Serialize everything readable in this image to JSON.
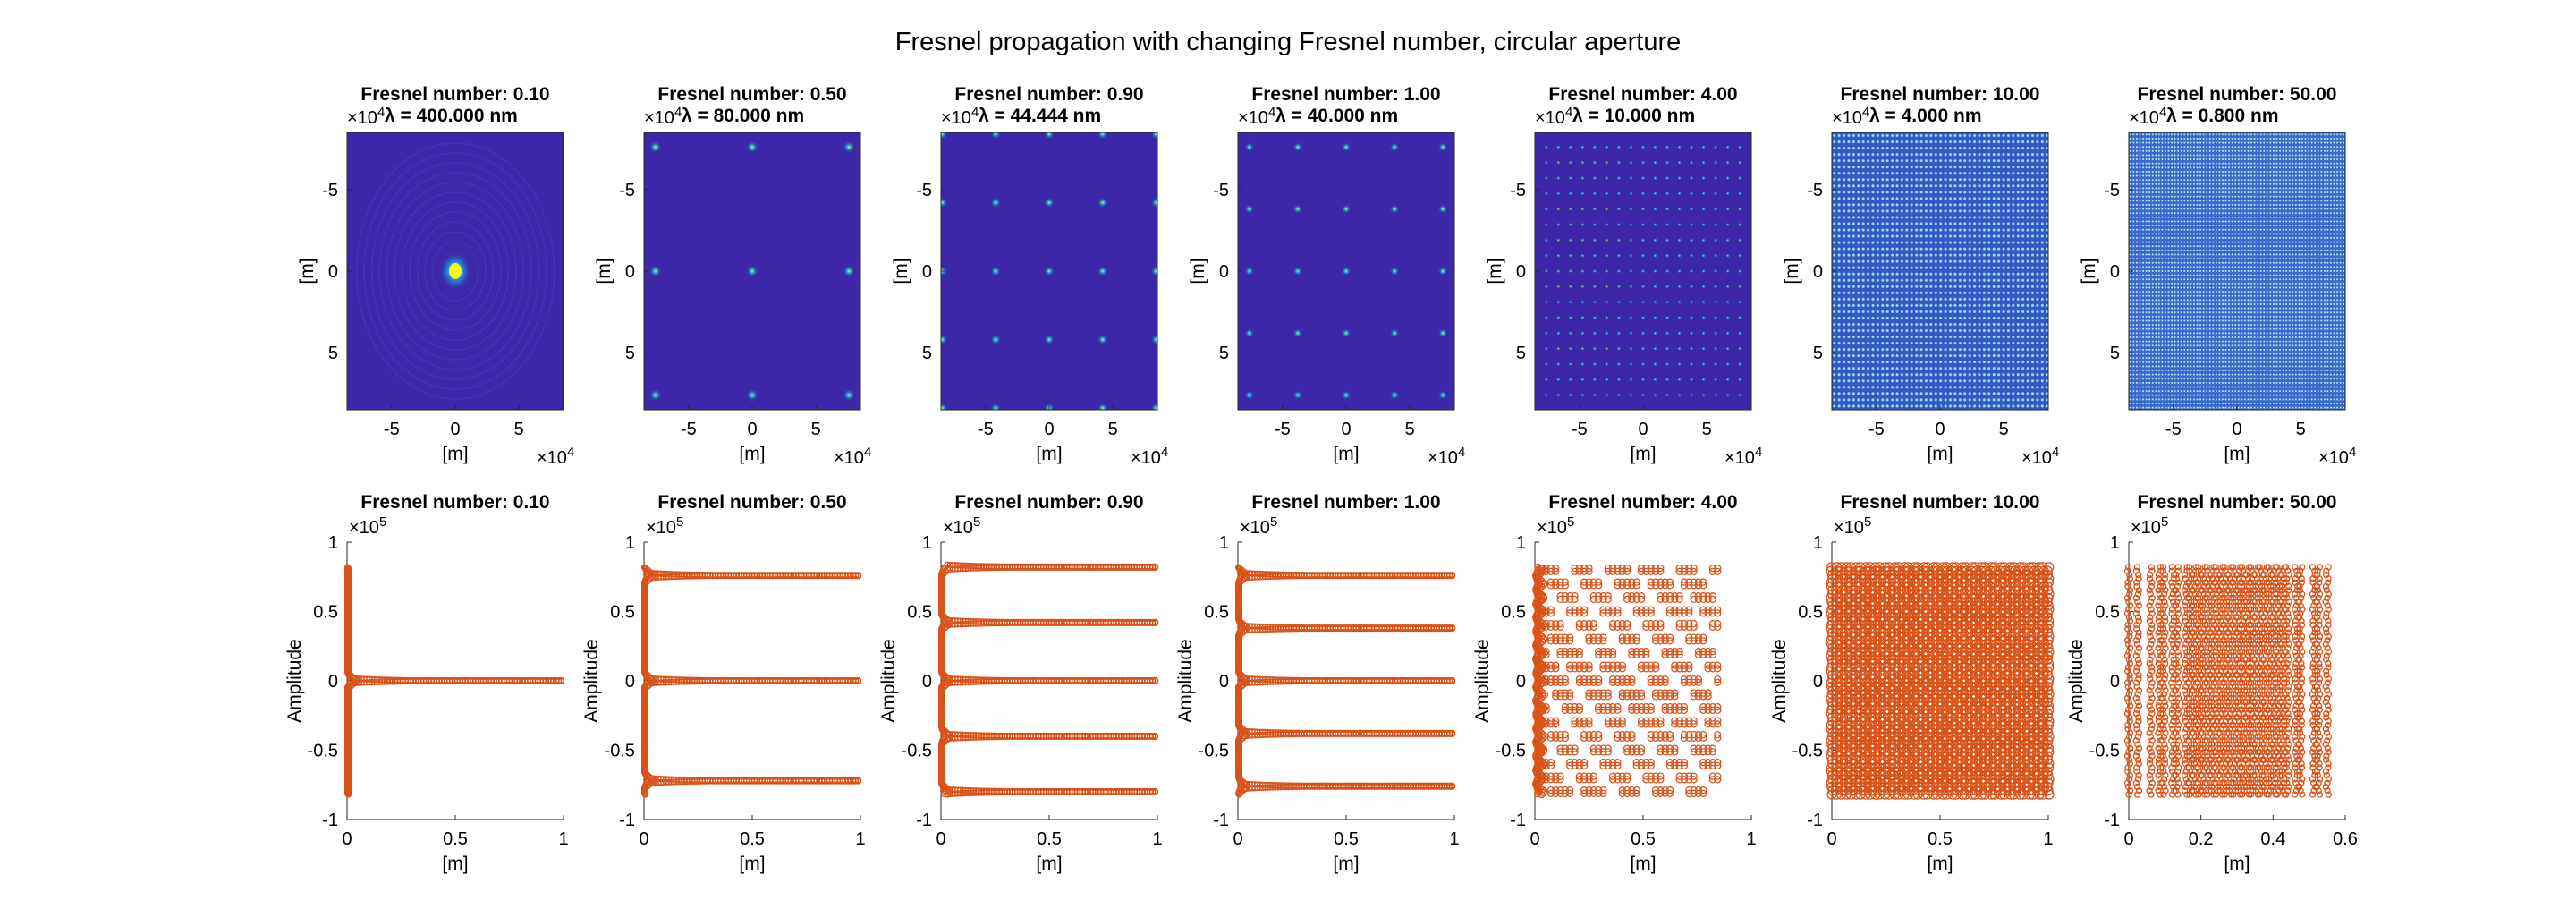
{
  "figure": {
    "title": "Fresnel propagation with changing Fresnel number, circular aperture",
    "colors": {
      "background": "#ffffff",
      "axis": "#262626",
      "marker": "#D95319",
      "field_low": "#3D26A8",
      "field_mid": "#14B2E0",
      "field_high": "#F9FB0E"
    }
  },
  "chart_data": [
    {
      "type": "heatmap",
      "title": "Fresnel number: 0.10",
      "subtitle": "λ = 400.000 nm",
      "multiplier": "×10",
      "multiplier_exp": "4",
      "xlabel": "[m]",
      "ylabel": "[m]",
      "xlim": [
        -8.5,
        8.5
      ],
      "ylim": [
        -8.5,
        8.5
      ],
      "y_reversed": true,
      "xticks": [
        -5,
        0,
        5
      ],
      "yticks": [
        -5,
        0,
        5
      ],
      "pattern": "airy",
      "spot_pitch": 0
    },
    {
      "type": "heatmap",
      "title": "Fresnel number: 0.50",
      "subtitle": "λ = 80.000 nm",
      "multiplier": "×10",
      "multiplier_exp": "4",
      "xlabel": "[m]",
      "ylabel": "[m]",
      "xlim": [
        -8.5,
        8.5
      ],
      "ylim": [
        -8.5,
        8.5
      ],
      "y_reversed": true,
      "xticks": [
        -5,
        0,
        5
      ],
      "yticks": [
        -5,
        0,
        5
      ],
      "pattern": "grid",
      "spot_pitch": 7.6
    },
    {
      "type": "heatmap",
      "title": "Fresnel number: 0.90",
      "subtitle": "λ = 44.444 nm",
      "multiplier": "×10",
      "multiplier_exp": "4",
      "xlabel": "[m]",
      "ylabel": "[m]",
      "xlim": [
        -8.5,
        8.5
      ],
      "ylim": [
        -8.5,
        8.5
      ],
      "y_reversed": true,
      "xticks": [
        -5,
        0,
        5
      ],
      "yticks": [
        -5,
        0,
        5
      ],
      "pattern": "grid",
      "spot_pitch": 4.2
    },
    {
      "type": "heatmap",
      "title": "Fresnel number: 1.00",
      "subtitle": "λ = 40.000 nm",
      "multiplier": "×10",
      "multiplier_exp": "4",
      "xlabel": "[m]",
      "ylabel": "[m]",
      "xlim": [
        -8.5,
        8.5
      ],
      "ylim": [
        -8.5,
        8.5
      ],
      "y_reversed": true,
      "xticks": [
        -5,
        0,
        5
      ],
      "yticks": [
        -5,
        0,
        5
      ],
      "pattern": "grid",
      "spot_pitch": 3.8
    },
    {
      "type": "heatmap",
      "title": "Fresnel number: 4.00",
      "subtitle": "λ = 10.000 nm",
      "multiplier": "×10",
      "multiplier_exp": "4",
      "xlabel": "[m]",
      "ylabel": "[m]",
      "xlim": [
        -8.5,
        8.5
      ],
      "ylim": [
        -8.5,
        8.5
      ],
      "y_reversed": true,
      "xticks": [
        -5,
        0,
        5
      ],
      "yticks": [
        -5,
        0,
        5
      ],
      "pattern": "grid",
      "spot_pitch": 0.95
    },
    {
      "type": "heatmap",
      "title": "Fresnel number: 10.00",
      "subtitle": "λ = 4.000 nm",
      "multiplier": "×10",
      "multiplier_exp": "4",
      "xlabel": "[m]",
      "ylabel": "[m]",
      "xlim": [
        -8.5,
        8.5
      ],
      "ylim": [
        -8.5,
        8.5
      ],
      "y_reversed": true,
      "xticks": [
        -5,
        0,
        5
      ],
      "yticks": [
        -5,
        0,
        5
      ],
      "pattern": "dense",
      "spot_pitch": 0.38
    },
    {
      "type": "heatmap",
      "title": "Fresnel number: 50.00",
      "subtitle": "λ = 0.800 nm",
      "multiplier": "×10",
      "multiplier_exp": "4",
      "xlabel": "[m]",
      "ylabel": "[m]",
      "xlim": [
        -8.5,
        8.5
      ],
      "ylim": [
        -8.5,
        8.5
      ],
      "y_reversed": true,
      "xticks": [
        -5,
        0,
        5
      ],
      "yticks": [
        -5,
        0,
        5
      ],
      "pattern": "fine",
      "spot_pitch": 0.25
    },
    {
      "type": "scatter",
      "title": "Fresnel number: 0.10",
      "multiplier": "×10",
      "multiplier_exp": "5",
      "xlabel": "[m]",
      "ylabel": "Amplitude",
      "xlim": [
        0,
        1
      ],
      "ylim": [
        -1,
        1
      ],
      "xticks": [
        0,
        0.5,
        1
      ],
      "yticks": [
        -1,
        -0.5,
        0,
        0.5,
        1
      ],
      "y_extent": 0.82,
      "line_positions": [
        0
      ],
      "line_reach": [
        1.0
      ],
      "marker_size": 3
    },
    {
      "type": "scatter",
      "title": "Fresnel number: 0.50",
      "multiplier": "×10",
      "multiplier_exp": "5",
      "xlabel": "[m]",
      "ylabel": "Amplitude",
      "xlim": [
        0,
        1
      ],
      "ylim": [
        -1,
        1
      ],
      "xticks": [
        0,
        0.5,
        1
      ],
      "yticks": [
        -1,
        -0.5,
        0,
        0.5,
        1
      ],
      "y_extent": 0.82,
      "line_positions": [
        -0.72,
        0,
        0.76
      ],
      "line_reach": [
        1.0,
        1.0,
        1.0
      ],
      "marker_size": 3
    },
    {
      "type": "scatter",
      "title": "Fresnel number: 0.90",
      "multiplier": "×10",
      "multiplier_exp": "5",
      "xlabel": "[m]",
      "ylabel": "Amplitude",
      "xlim": [
        0,
        1
      ],
      "ylim": [
        -1,
        1
      ],
      "xticks": [
        0,
        0.5,
        1
      ],
      "yticks": [
        -1,
        -0.5,
        0,
        0.5,
        1
      ],
      "y_extent": 0.82,
      "line_positions": [
        -0.8,
        -0.4,
        0,
        0.42,
        0.82
      ],
      "line_reach": [
        1.0,
        1.0,
        1.0,
        1.0,
        1.0
      ],
      "marker_size": 3
    },
    {
      "type": "scatter",
      "title": "Fresnel number: 1.00",
      "multiplier": "×10",
      "multiplier_exp": "5",
      "xlabel": "[m]",
      "ylabel": "Amplitude",
      "xlim": [
        0,
        1
      ],
      "ylim": [
        -1,
        1
      ],
      "xticks": [
        0,
        0.5,
        1
      ],
      "yticks": [
        -1,
        -0.5,
        0,
        0.5,
        1
      ],
      "y_extent": 0.82,
      "line_positions": [
        -0.76,
        -0.38,
        0,
        0.38,
        0.76
      ],
      "line_reach": [
        1.0,
        1.0,
        1.0,
        1.0,
        1.0
      ],
      "marker_size": 3
    },
    {
      "type": "scatter",
      "title": "Fresnel number: 4.00",
      "multiplier": "×10",
      "multiplier_exp": "5",
      "xlabel": "[m]",
      "ylabel": "Amplitude",
      "xlim": [
        0,
        1
      ],
      "ylim": [
        -1,
        1
      ],
      "xticks": [
        0,
        0.5,
        1
      ],
      "yticks": [
        -1,
        -0.5,
        0,
        0.5,
        1
      ],
      "y_extent": 0.82,
      "line_positions": [
        -0.8,
        -0.7,
        -0.6,
        -0.5,
        -0.4,
        -0.3,
        -0.2,
        -0.1,
        0,
        0.1,
        0.2,
        0.3,
        0.4,
        0.5,
        0.6,
        0.7,
        0.8
      ],
      "line_reach": [
        0.85,
        0.85,
        0.85,
        0.85,
        0.85,
        0.85,
        0.85,
        0.85,
        0.85,
        0.85,
        0.85,
        0.85,
        0.85,
        0.85,
        0.85,
        0.85,
        0.85
      ],
      "marker_size": 3.5
    },
    {
      "type": "scatter",
      "title": "Fresnel number: 10.00",
      "multiplier": "×10",
      "multiplier_exp": "5",
      "xlabel": "[m]",
      "ylabel": "Amplitude",
      "xlim": [
        0,
        1
      ],
      "ylim": [
        -1,
        1
      ],
      "xticks": [
        0,
        0.5,
        1
      ],
      "yticks": [
        -1,
        -0.5,
        0,
        0.5,
        1
      ],
      "y_extent": 0.82,
      "line_positions": [],
      "line_reach": [],
      "x_range": [
        0,
        1
      ],
      "marker_size": 5
    },
    {
      "type": "scatter",
      "title": "Fresnel number: 50.00",
      "multiplier": "×10",
      "multiplier_exp": "5",
      "xlabel": "[m]",
      "ylabel": "Amplitude",
      "xlim": [
        0,
        0.6
      ],
      "ylim": [
        -1,
        1
      ],
      "xticks": [
        0,
        0.2,
        0.4,
        0.6
      ],
      "yticks": [
        -1,
        -0.5,
        0,
        0.5,
        1
      ],
      "y_extent": 0.82,
      "line_positions": [],
      "line_reach": [],
      "x_range": [
        0,
        0.55
      ],
      "marker_size": 3
    }
  ]
}
